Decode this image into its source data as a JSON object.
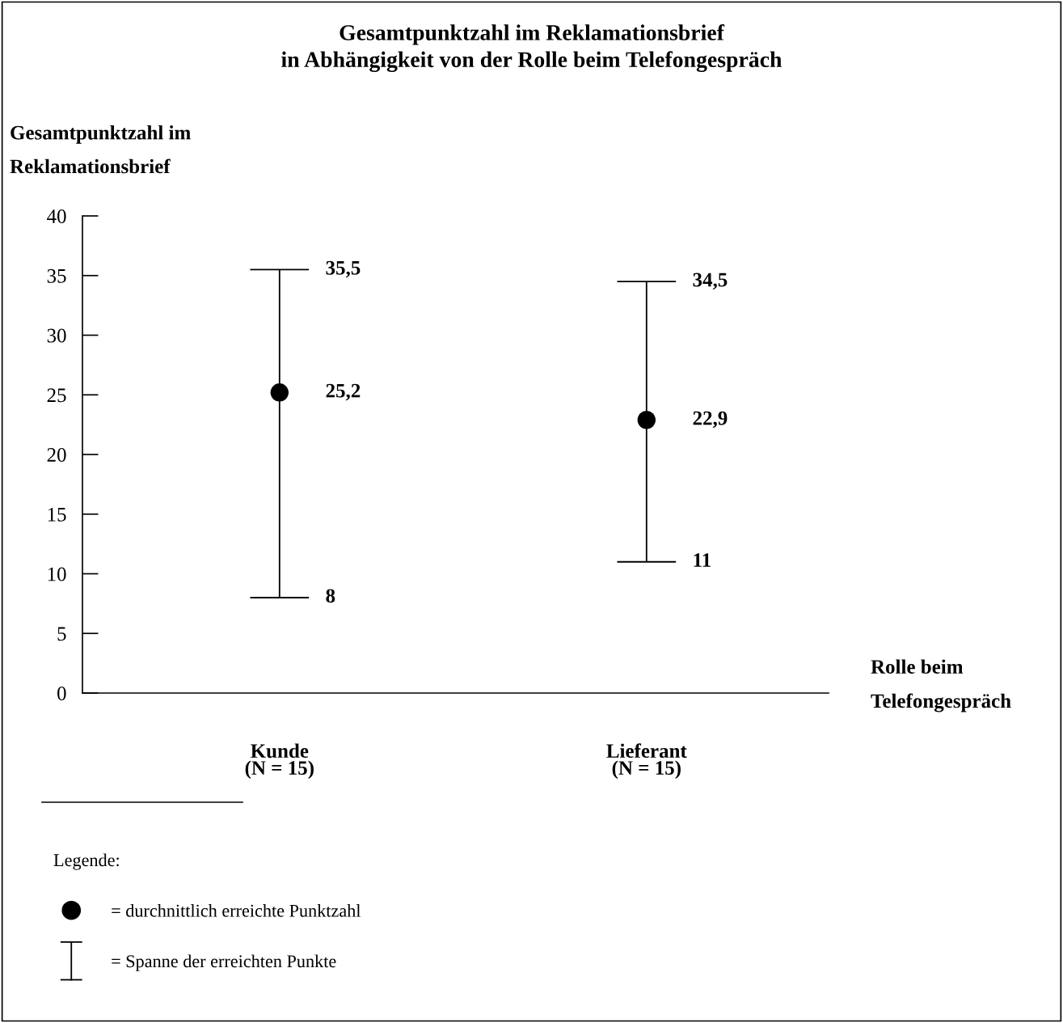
{
  "chart_data": {
    "type": "scatter",
    "title": "Gesamtpunktzahl im Reklamationsbrief\nin Abhängigkeit von der Rolle beim Telefongespräch",
    "ylabel": "Gesamtpunktzahl im\nReklamationsbrief",
    "xlabel": "Rolle beim\nTelefongespräch",
    "categories": [
      "Kunde\n(N = 15)",
      "Lieferant\n(N = 15)"
    ],
    "series": [
      {
        "name": "= durchnittlich erreichte Punktzahl",
        "color": "#000000",
        "values": [
          25.2,
          22.9
        ],
        "errors": [
          [
            8,
            35.5
          ],
          [
            11,
            34.5
          ]
        ],
        "value_labels": [
          "25,2",
          "22,9"
        ]
      }
    ],
    "annotations": [
      "= Spanne der erreichten Punkte",
      {
        "text": "35,5",
        "x": "Kunde\n(N = 15)",
        "y": 35.5
      },
      {
        "text": "8",
        "x": "Kunde\n(N = 15)",
        "y": 8
      },
      {
        "text": "34,5",
        "x": "Lieferant\n(N = 15)",
        "y": 34.5
      },
      {
        "text": "11",
        "x": "Lieferant\n(N = 15)",
        "y": 11
      }
    ],
    "legend_title": "Legende:",
    "legend": "bottom left",
    "marker": "circle",
    "ylim": [
      0,
      40
    ],
    "yticks": [
      0,
      5,
      10,
      15,
      20,
      25,
      30,
      35,
      40
    ],
    "grid": false
  }
}
